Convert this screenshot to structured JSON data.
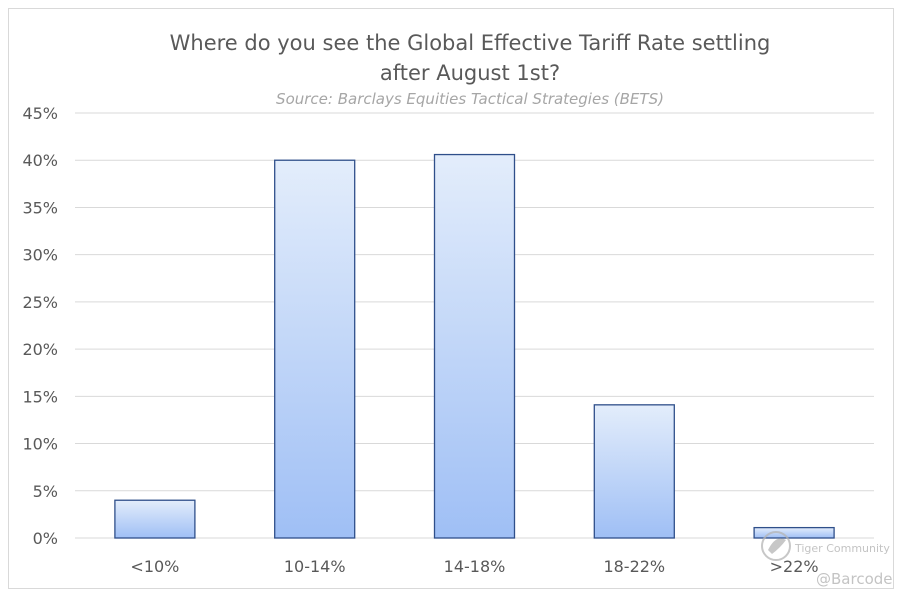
{
  "chart_data": {
    "type": "bar",
    "title": "Where do you see the Global Effective Tariff Rate settling after August 1st?",
    "title_lines": [
      "Where do you see the Global Effective Tariff Rate settling",
      "after August 1st?"
    ],
    "subtitle": "Source: Barclays Equities Tactical Strategies (BETS)",
    "xlabel": "",
    "ylabel": "",
    "categories": [
      "<10%",
      "10-14%",
      "14-18%",
      "18-22%",
      ">22%"
    ],
    "values": [
      4,
      40,
      40.6,
      14.1,
      1.1
    ],
    "ylim": [
      0,
      45
    ],
    "yticks": [
      0,
      5,
      10,
      15,
      20,
      25,
      30,
      35,
      40,
      45
    ],
    "ytick_labels": [
      "0%",
      "5%",
      "10%",
      "15%",
      "20%",
      "25%",
      "30%",
      "35%",
      "40%",
      "45%"
    ],
    "grid": true,
    "legend": "none",
    "colors": {
      "bar_fill_top": "#e3edfb",
      "bar_fill_bottom": "#9fbff5",
      "bar_stroke": "#2f4f8a",
      "grid": "#d9d9d9",
      "text": "#595959"
    }
  },
  "watermark": {
    "brand": "Tiger Community",
    "handle": "@Barcode"
  }
}
